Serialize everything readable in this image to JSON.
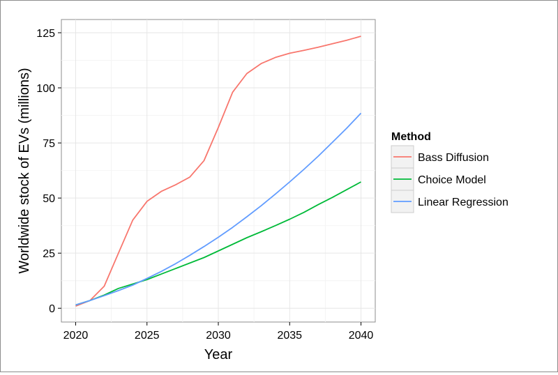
{
  "chart_data": {
    "type": "line",
    "title": "",
    "xlabel": "Year",
    "ylabel": "Worldwide stock of EVs (millions)",
    "xlim": [
      2020,
      2040
    ],
    "ylim": [
      0,
      125
    ],
    "x_ticks": [
      2020,
      2025,
      2030,
      2035,
      2040
    ],
    "y_ticks": [
      0,
      25,
      50,
      75,
      100,
      125
    ],
    "grid": true,
    "legend": {
      "title": "Method",
      "position": "right"
    },
    "x": [
      2020,
      2021,
      2022,
      2023,
      2024,
      2025,
      2026,
      2027,
      2028,
      2029,
      2030,
      2031,
      2032,
      2033,
      2034,
      2035,
      2036,
      2037,
      2038,
      2039,
      2040
    ],
    "series": [
      {
        "name": "Bass Diffusion",
        "color": "#F8766D",
        "values": [
          1,
          3.5,
          10,
          25,
          40,
          48.5,
          53,
          56,
          59.5,
          67,
          82,
          98,
          106.5,
          111,
          113.8,
          115.7,
          117,
          118.4,
          120,
          121.6,
          123.4
        ]
      },
      {
        "name": "Choice Model",
        "color": "#00BA38",
        "values": [
          1.5,
          3.5,
          6,
          9,
          11,
          13,
          15.5,
          18,
          20.5,
          23,
          26,
          29,
          32,
          34.7,
          37.5,
          40.4,
          43.5,
          47,
          50.3,
          53.8,
          57.3
        ]
      },
      {
        "name": "Linear Regression",
        "color": "#619CFF",
        "values": [
          1.5,
          3.5,
          5.7,
          8,
          10.5,
          13.5,
          16.7,
          20.2,
          24,
          28,
          32.2,
          36.7,
          41.5,
          46.5,
          51.8,
          57.3,
          63,
          69,
          75.3,
          81.7,
          88.5
        ]
      }
    ]
  }
}
